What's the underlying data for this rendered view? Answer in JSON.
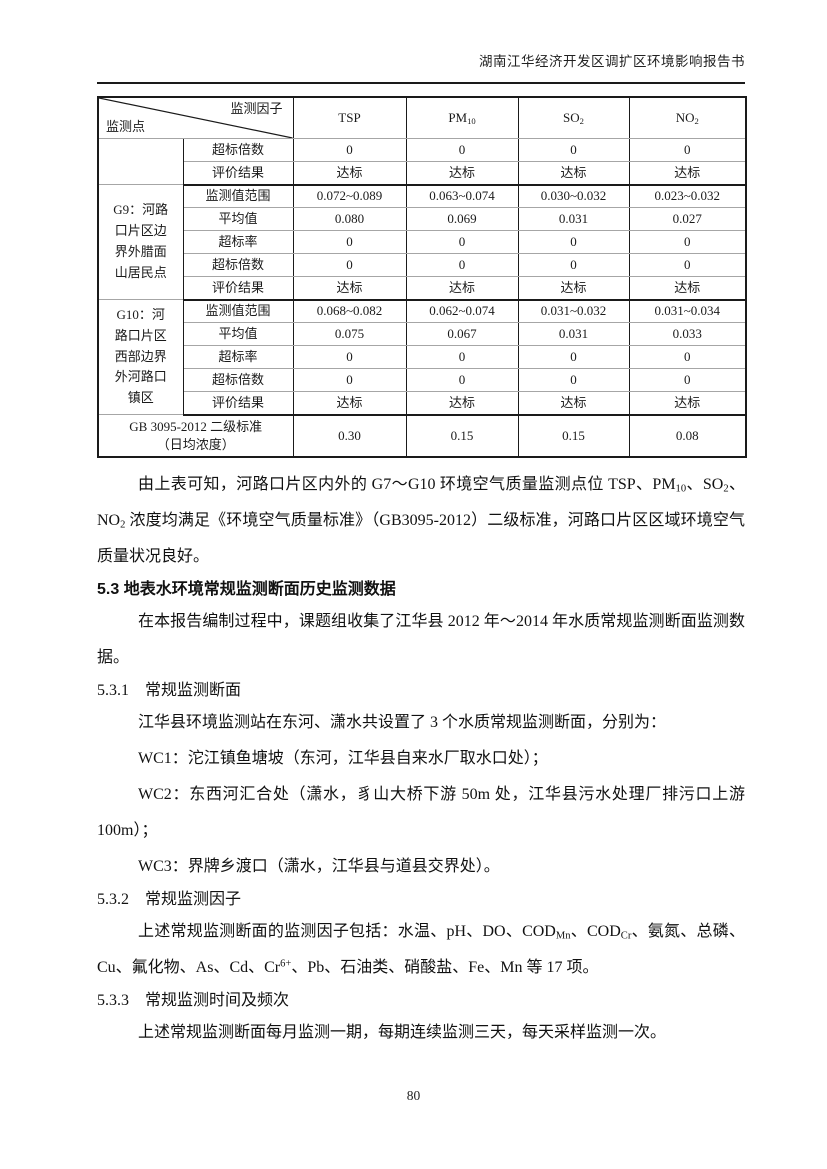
{
  "header": {
    "title": "湖南江华经济开发区调扩区环境影响报告书"
  },
  "table": {
    "corner": {
      "top_right": "监测因子",
      "bottom_left": "监测点"
    },
    "columns": [
      {
        "base": "TSP",
        "sub": ""
      },
      {
        "base": "PM",
        "sub": "10"
      },
      {
        "base": "SO",
        "sub": "2"
      },
      {
        "base": "NO",
        "sub": "2"
      }
    ],
    "rows": [
      {
        "group": "",
        "group_span": 2,
        "label": "超标倍数",
        "values": [
          "0",
          "0",
          "0",
          "0"
        ]
      },
      {
        "label": "评价结果",
        "values": [
          "达标",
          "达标",
          "达标",
          "达标"
        ],
        "section_end": true
      },
      {
        "group": "G9：河路口片区边界外腊面山居民点",
        "group_span": 5,
        "label": "监测值范围",
        "values": [
          "0.072~0.089",
          "0.063~0.074",
          "0.030~0.032",
          "0.023~0.032"
        ]
      },
      {
        "label": "平均值",
        "values": [
          "0.080",
          "0.069",
          "0.031",
          "0.027"
        ]
      },
      {
        "label": "超标率",
        "values": [
          "0",
          "0",
          "0",
          "0"
        ]
      },
      {
        "label": "超标倍数",
        "values": [
          "0",
          "0",
          "0",
          "0"
        ]
      },
      {
        "label": "评价结果",
        "values": [
          "达标",
          "达标",
          "达标",
          "达标"
        ],
        "section_end": true
      },
      {
        "group": "G10：河路口片区西部边界外河路口镇区",
        "group_span": 5,
        "label": "监测值范围",
        "values": [
          "0.068~0.082",
          "0.062~0.074",
          "0.031~0.032",
          "0.031~0.034"
        ]
      },
      {
        "label": "平均值",
        "values": [
          "0.075",
          "0.067",
          "0.031",
          "0.033"
        ]
      },
      {
        "label": "超标率",
        "values": [
          "0",
          "0",
          "0",
          "0"
        ]
      },
      {
        "label": "超标倍数",
        "values": [
          "0",
          "0",
          "0",
          "0"
        ]
      },
      {
        "label": "评价结果",
        "values": [
          "达标",
          "达标",
          "达标",
          "达标"
        ],
        "section_end": true
      }
    ],
    "standard_row": {
      "label_lines": [
        "GB 3095-2012 二级标准",
        "（日均浓度）"
      ],
      "values": [
        "0.30",
        "0.15",
        "0.15",
        "0.08"
      ]
    }
  },
  "body": {
    "blocks": [
      {
        "type": "para",
        "segments": [
          {
            "text": "由上表可知，河路口片区内外的 G7～G10 环境空气质量监测点位 TSP、PM"
          },
          {
            "sub": "10"
          },
          {
            "text": "、SO"
          },
          {
            "sub": "2"
          },
          {
            "text": "、NO"
          },
          {
            "sub": "2"
          },
          {
            "text": " 浓度均满足《环境空气质量标准》（GB3095-2012）二级标准，河路口片区区域环境空气质量状况良好。"
          }
        ]
      },
      {
        "type": "h1",
        "segments": [
          {
            "text": "5.3 地表水环境常规监测断面历史监测数据"
          }
        ]
      },
      {
        "type": "para",
        "segments": [
          {
            "text": "在本报告编制过程中，课题组收集了江华县 2012 年～2014 年水质常规监测断面监测数据。"
          }
        ]
      },
      {
        "type": "h2",
        "segments": [
          {
            "text": "5.3.1　常规监测断面"
          }
        ]
      },
      {
        "type": "para",
        "segments": [
          {
            "text": "江华县环境监测站在东河、潇水共设置了 3 个水质常规监测断面，分别为："
          }
        ]
      },
      {
        "type": "para",
        "segments": [
          {
            "text": "WC1：沱江镇鱼塘坡（东河，江华县自来水厂取水口处）；"
          }
        ]
      },
      {
        "type": "para",
        "segments": [
          {
            "text": "WC2：东西河汇合处（潇水，豸山大桥下游 50m 处，江华县污水处理厂排污口上游 100m）；"
          }
        ]
      },
      {
        "type": "para",
        "segments": [
          {
            "text": "WC3：界牌乡渡口（潇水，江华县与道县交界处）。"
          }
        ]
      },
      {
        "type": "h2",
        "segments": [
          {
            "text": "5.3.2　常规监测因子"
          }
        ]
      },
      {
        "type": "para",
        "segments": [
          {
            "text": "上述常规监测断面的监测因子包括：水温、pH、DO、COD"
          },
          {
            "sub": "Mn"
          },
          {
            "text": "、COD"
          },
          {
            "sub": "Cr"
          },
          {
            "text": "、氨氮、总磷、Cu、氟化物、As、Cd、Cr"
          },
          {
            "sup": "6+"
          },
          {
            "text": "、Pb、石油类、硝酸盐、Fe、Mn 等 17 项。"
          }
        ]
      },
      {
        "type": "h2",
        "segments": [
          {
            "text": "5.3.3　常规监测时间及频次"
          }
        ]
      },
      {
        "type": "para",
        "segments": [
          {
            "text": "上述常规监测断面每月监测一期，每期连续监测三天，每天采样监测一次。"
          }
        ]
      }
    ]
  },
  "footer": {
    "page_number": "80"
  }
}
